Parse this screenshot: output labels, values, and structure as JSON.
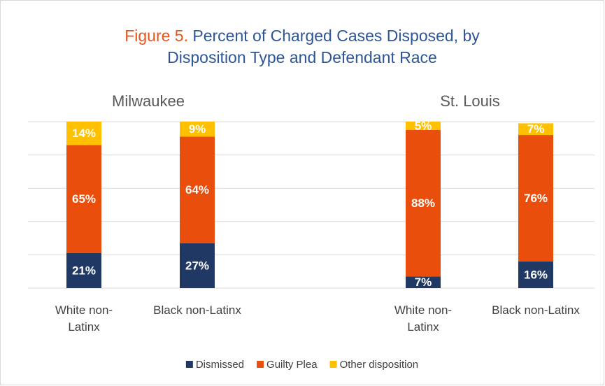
{
  "chart_data": {
    "type": "bar",
    "stacked": true,
    "title_prefix": "Figure 5.",
    "title": "Percent of Charged Cases Disposed, by Disposition Type and Defendant Race",
    "groups": [
      "Milwaukee",
      "St. Louis"
    ],
    "categories": [
      [
        "White non-Latinx",
        "Black non-Latinx"
      ],
      [
        "White non-Latinx",
        "Black non-Latinx"
      ]
    ],
    "series": [
      {
        "name": "Dismissed",
        "color": "#203864",
        "values": [
          [
            21,
            27
          ],
          [
            7,
            16
          ]
        ],
        "value_labels": [
          [
            "21%",
            "27%"
          ],
          [
            "7%",
            "16%"
          ]
        ]
      },
      {
        "name": "Guilty Plea",
        "color": "#ea4e0c",
        "values": [
          [
            65,
            64
          ],
          [
            88,
            76
          ]
        ],
        "value_labels": [
          [
            "65%",
            "64%"
          ],
          [
            "88%",
            "76%"
          ]
        ]
      },
      {
        "name": "Other disposition",
        "color": "#ffc000",
        "values": [
          [
            14,
            9
          ],
          [
            5,
            7
          ]
        ],
        "value_labels": [
          [
            "14%",
            "9%"
          ],
          [
            "5%",
            "7%"
          ]
        ]
      }
    ],
    "ylim": [
      0,
      100
    ],
    "yticks": [
      0,
      20,
      40,
      60,
      80,
      100
    ],
    "grid": true,
    "legend": "bottom"
  }
}
